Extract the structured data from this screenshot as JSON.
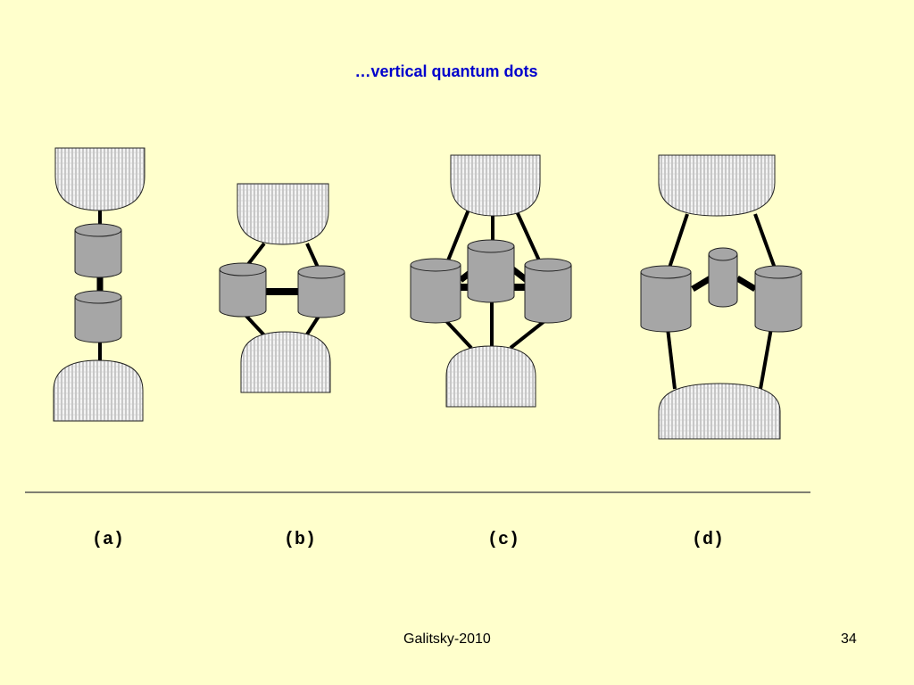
{
  "slide": {
    "title": "…vertical quantum dots",
    "footer_author": "Galitsky-2010",
    "page_number": "34"
  },
  "figure": {
    "panel_labels": [
      "(a)",
      "(b)",
      "(c)",
      "(d)"
    ]
  },
  "colors": {
    "background": "#ffffcc",
    "title": "#0000cc",
    "dot_fill": "#a6a6a6",
    "lead_fill": "#f4f4f4",
    "lead_hatch": "#9a9a9a"
  }
}
